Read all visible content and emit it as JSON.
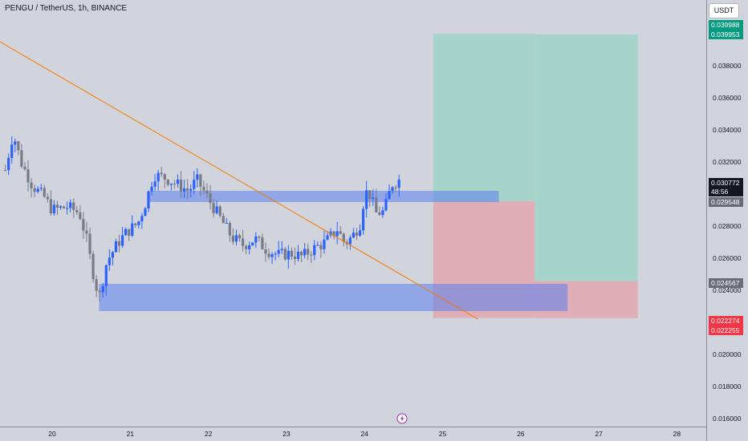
{
  "title": "PENGU / TetherUS, 1h, BINANCE",
  "currency_button": "USDT",
  "y_axis_ticks": [
    "0.038000",
    "0.036000",
    "0.034000",
    "0.032000",
    "0.028000",
    "0.026000",
    "0.024000",
    "0.020000",
    "0.018000",
    "0.016000"
  ],
  "x_axis_ticks": [
    "20",
    "21",
    "22",
    "23",
    "24",
    "25",
    "26",
    "27",
    "28"
  ],
  "price_labels": {
    "target_top": "0.039988",
    "target_bottom": "0.039953",
    "current_price": "0.030772",
    "countdown": "48:56",
    "entry": "0.029548",
    "stop_level": "0.024567",
    "stop_top": "0.022274",
    "stop_bottom": "0.022255"
  },
  "colors": {
    "background": "#d1d4dc",
    "candle_up": "#2962ff",
    "candle_down": "#787b86",
    "trendline": "#f57c00",
    "zone": "#5b7ff0",
    "profit_zone": "#9fd3c7",
    "loss_zone": "#e3a7b0"
  },
  "icons": {
    "bottom_marker": "lightning-icon"
  },
  "chart_data": {
    "type": "candlestick",
    "symbol": "PENGU / TetherUS",
    "interval": "1h",
    "exchange": "BINANCE",
    "ylim": [
      0.0155,
      0.0417
    ],
    "x_days": [
      20,
      21,
      22,
      23,
      24,
      25,
      26,
      27,
      28
    ],
    "price_path": [
      [
        19.4,
        0.0315
      ],
      [
        19.5,
        0.0338
      ],
      [
        19.6,
        0.032
      ],
      [
        19.75,
        0.0305
      ],
      [
        19.9,
        0.0298
      ],
      [
        20.0,
        0.029
      ],
      [
        20.2,
        0.0292
      ],
      [
        20.35,
        0.0288
      ],
      [
        20.45,
        0.027
      ],
      [
        20.5,
        0.0256
      ],
      [
        20.6,
        0.0235
      ],
      [
        20.7,
        0.0258
      ],
      [
        20.85,
        0.027
      ],
      [
        20.95,
        0.0276
      ],
      [
        21.1,
        0.0282
      ],
      [
        21.2,
        0.0295
      ],
      [
        21.3,
        0.0312
      ],
      [
        21.45,
        0.031
      ],
      [
        21.6,
        0.0306
      ],
      [
        21.75,
        0.0302
      ],
      [
        21.85,
        0.0309
      ],
      [
        22.0,
        0.0297
      ],
      [
        22.15,
        0.0285
      ],
      [
        22.3,
        0.0273
      ],
      [
        22.45,
        0.0268
      ],
      [
        22.6,
        0.0272
      ],
      [
        22.75,
        0.0265
      ],
      [
        22.9,
        0.0262
      ],
      [
        23.05,
        0.0263
      ],
      [
        23.2,
        0.0261
      ],
      [
        23.35,
        0.0266
      ],
      [
        23.5,
        0.027
      ],
      [
        23.65,
        0.0278
      ],
      [
        23.75,
        0.0269
      ],
      [
        23.85,
        0.0274
      ],
      [
        23.95,
        0.0282
      ],
      [
        24.0,
        0.03
      ],
      [
        24.05,
        0.0302
      ],
      [
        24.15,
        0.0288
      ],
      [
        24.25,
        0.0289
      ],
      [
        24.35,
        0.0306
      ],
      [
        24.45,
        0.0309
      ]
    ],
    "trendline": {
      "from": [
        19.33,
        0.0395
      ],
      "to": [
        25.45,
        0.0222
      ]
    },
    "zones": [
      {
        "from": 21.25,
        "to": 25.72,
        "top": 0.0302,
        "bottom": 0.0295
      },
      {
        "from": 20.6,
        "to": 26.6,
        "top": 0.0244,
        "bottom": 0.0227
      }
    ],
    "position": {
      "type": "long",
      "entry": 0.029548,
      "target": 0.039988,
      "stop": 0.022274,
      "from": 24.88,
      "to": 26.18
    },
    "position2": {
      "type": "long",
      "entry": 0.024567,
      "target": 0.039953,
      "stop": 0.022255,
      "from": 26.18,
      "to": 27.5
    },
    "current_price": 0.030772
  }
}
